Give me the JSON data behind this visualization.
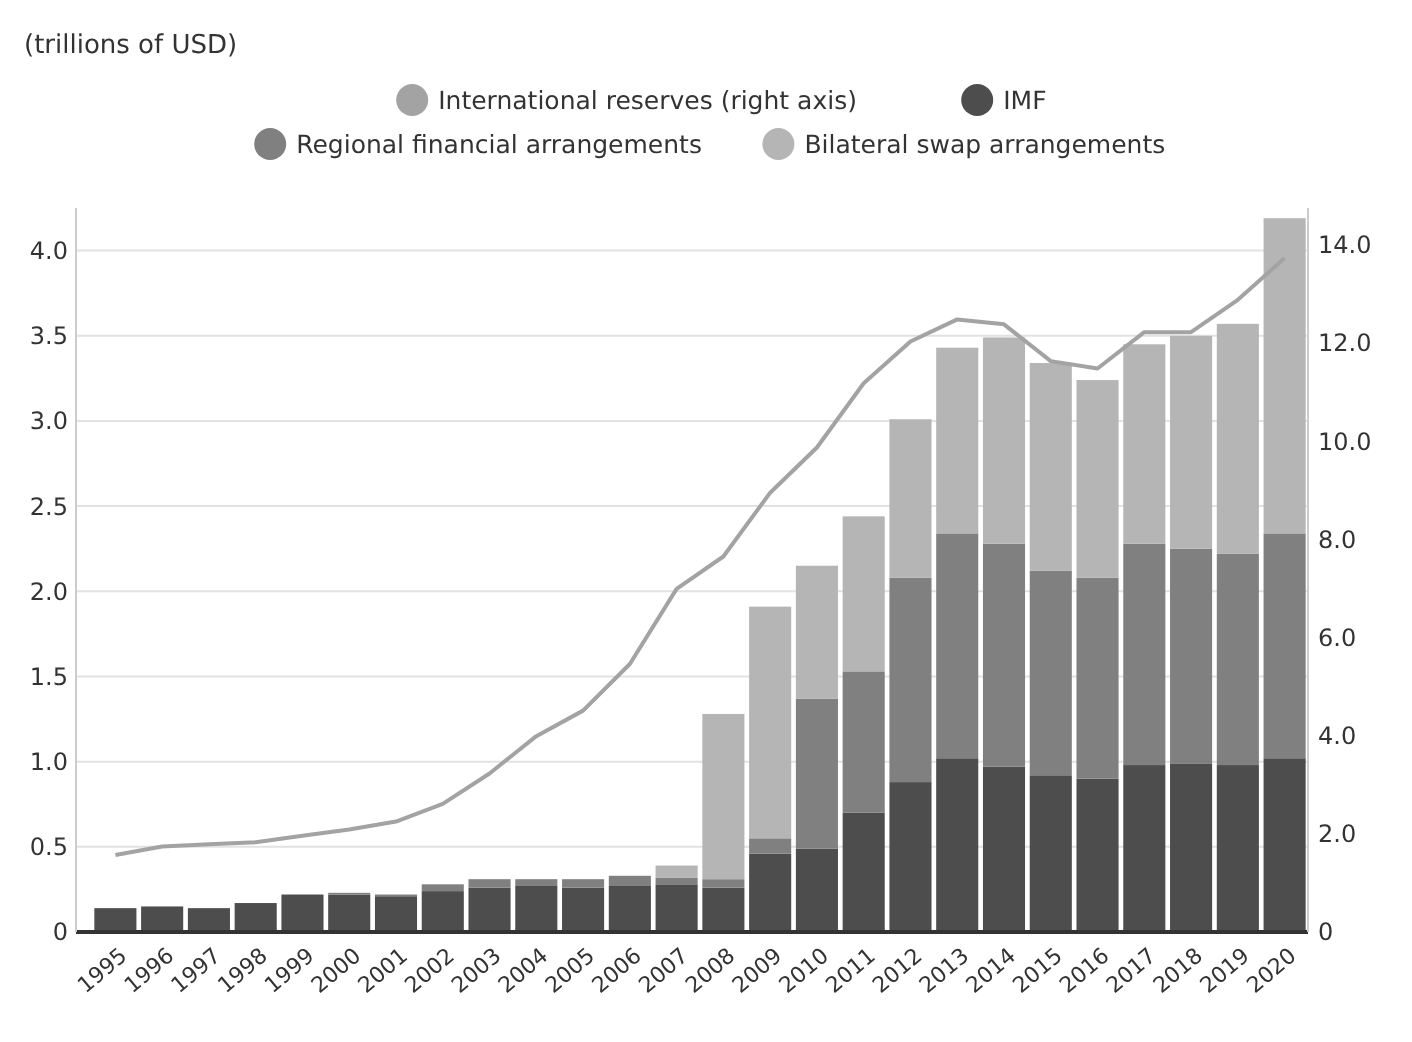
{
  "chart_data": {
    "type": "bar",
    "stacked": true,
    "annotations": [
      "(trillions of USD)"
    ],
    "categories": [
      "1995",
      "1996",
      "1997",
      "1998",
      "1999",
      "2000",
      "2001",
      "2002",
      "2003",
      "2004",
      "2005",
      "2006",
      "2007",
      "2008",
      "2009",
      "2010",
      "2011",
      "2012",
      "2013",
      "2014",
      "2015",
      "2016",
      "2017",
      "2018",
      "2019",
      "2020"
    ],
    "series": [
      {
        "name": "International reserves (right axis)",
        "type": "line",
        "axis": "y2",
        "color": "#a3a3a3",
        "values": [
          1.57,
          1.74,
          1.79,
          1.83,
          1.96,
          2.09,
          2.25,
          2.61,
          3.23,
          3.99,
          4.51,
          5.46,
          6.99,
          7.65,
          8.95,
          9.87,
          11.18,
          12.03,
          12.48,
          12.38,
          11.63,
          11.48,
          12.22,
          12.22,
          12.88,
          13.73
        ]
      },
      {
        "name": "IMF",
        "color": "#4d4d4d",
        "values": [
          0.14,
          0.15,
          0.14,
          0.17,
          0.22,
          0.22,
          0.21,
          0.24,
          0.26,
          0.27,
          0.26,
          0.27,
          0.28,
          0.26,
          0.46,
          0.49,
          0.7,
          0.88,
          1.02,
          0.97,
          0.92,
          0.9,
          0.98,
          0.99,
          0.98,
          1.02
        ]
      },
      {
        "name": "Regional financial arrangements",
        "color": "#808080",
        "values": [
          0,
          0,
          0,
          0,
          0,
          0.01,
          0.01,
          0.04,
          0.05,
          0.04,
          0.05,
          0.06,
          0.04,
          0.05,
          0.09,
          0.88,
          0.83,
          1.2,
          1.32,
          1.31,
          1.2,
          1.18,
          1.3,
          1.26,
          1.24,
          1.32
        ]
      },
      {
        "name": "Bilateral swap arrangements",
        "color": "#b5b5b5",
        "values": [
          0,
          0,
          0,
          0,
          0,
          0,
          0,
          0,
          0,
          0,
          0,
          0,
          0.07,
          0.97,
          1.36,
          0.78,
          0.91,
          0.93,
          1.09,
          1.21,
          1.22,
          1.16,
          1.17,
          1.25,
          1.35,
          1.85
        ]
      }
    ],
    "ylim": [
      0,
      4.25
    ],
    "yticks": [
      {
        "value": 0,
        "label": "0"
      },
      {
        "value": 0.5,
        "label": "0.5"
      },
      {
        "value": 1,
        "label": "1.0"
      },
      {
        "value": 1.5,
        "label": "1.5"
      },
      {
        "value": 2,
        "label": "2.0"
      },
      {
        "value": 2.5,
        "label": "2.5"
      },
      {
        "value": 3,
        "label": "3.0"
      },
      {
        "value": 3.5,
        "label": "3.5"
      },
      {
        "value": 4,
        "label": "4.0"
      }
    ],
    "y2lim": [
      0,
      14.75
    ],
    "y2ticks": [
      {
        "value": 0,
        "label": "0"
      },
      {
        "value": 2,
        "label": "2.0"
      },
      {
        "value": 4,
        "label": "4.0"
      },
      {
        "value": 6,
        "label": "6.0"
      },
      {
        "value": 8,
        "label": "8.0"
      },
      {
        "value": 10,
        "label": "10.0"
      },
      {
        "value": 12,
        "label": "12.0"
      },
      {
        "value": 14,
        "label": "14.0"
      }
    ],
    "grid": "y",
    "legend": "top",
    "marker": "none",
    "line_style": "solid"
  }
}
